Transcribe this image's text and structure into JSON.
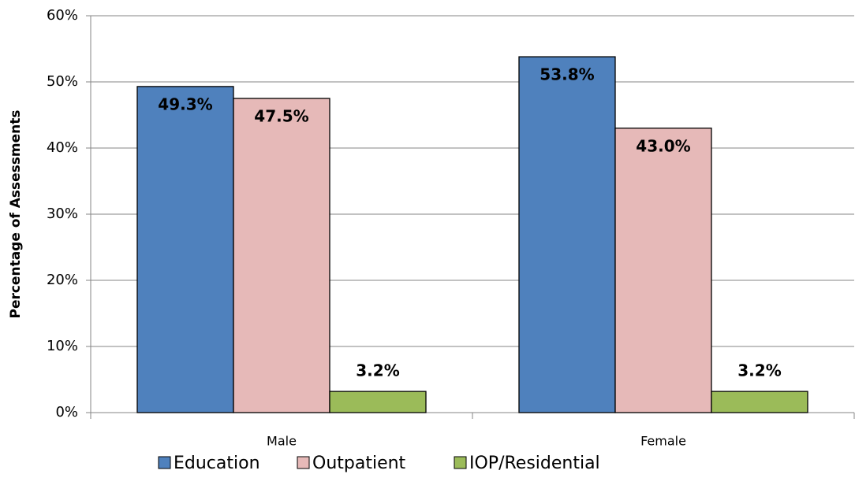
{
  "chart_data": {
    "type": "bar",
    "y_label": "Percentage of Assessments",
    "categories": [
      "Male",
      "Female"
    ],
    "series": [
      {
        "name": "Education",
        "color": "#4f81bd",
        "values": [
          49.3,
          53.8
        ],
        "value_labels": [
          "49.3%",
          "53.8%"
        ]
      },
      {
        "name": "Outpatient",
        "color": "#e6b9b8",
        "values": [
          47.5,
          43.0
        ],
        "value_labels": [
          "47.5%",
          "43.0%"
        ]
      },
      {
        "name": "IOP/Residential",
        "color": "#9bbb59",
        "values": [
          3.2,
          3.2
        ],
        "value_labels": [
          "3.2%",
          "3.2%"
        ]
      }
    ],
    "ylim": [
      0,
      60
    ],
    "yticks": [
      {
        "value": 0,
        "label": "0%"
      },
      {
        "value": 10,
        "label": "10%"
      },
      {
        "value": 20,
        "label": "20%"
      },
      {
        "value": 30,
        "label": "30%"
      },
      {
        "value": 40,
        "label": "40%"
      },
      {
        "value": 50,
        "label": "50%"
      },
      {
        "value": 60,
        "label": "60%"
      }
    ],
    "grid": true
  }
}
